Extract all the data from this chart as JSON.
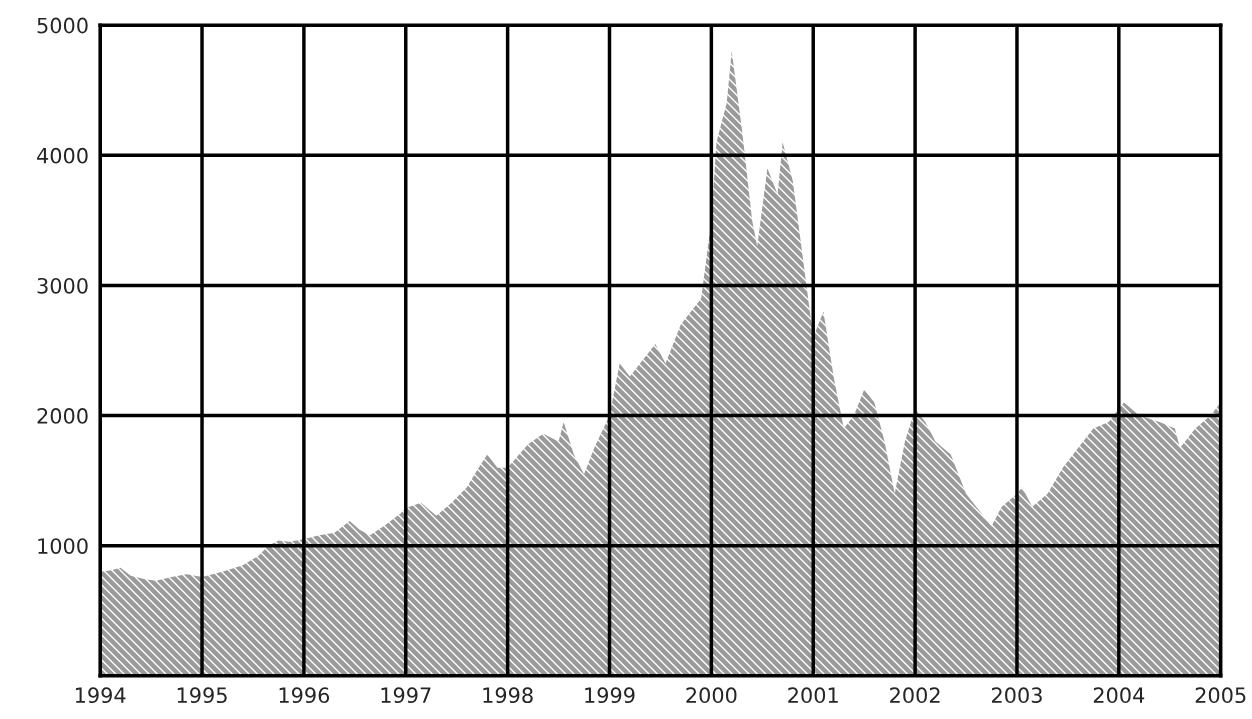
{
  "chart_data": {
    "type": "area",
    "xlim": [
      1994,
      2005
    ],
    "xticks": [
      1994,
      1995,
      1996,
      1997,
      1998,
      1999,
      2000,
      2001,
      2002,
      2003,
      2004,
      2005
    ],
    "ylim": [
      0,
      5000
    ],
    "yticks": [
      1000,
      2000,
      3000,
      4000,
      5000
    ],
    "grid": true,
    "series": [
      {
        "color": "#9a9a9a",
        "x": [
          1994.0,
          1994.1,
          1994.2,
          1994.3,
          1994.45,
          1994.55,
          1994.7,
          1994.85,
          1995.0,
          1995.2,
          1995.4,
          1995.55,
          1995.65,
          1995.75,
          1995.85,
          1996.0,
          1996.15,
          1996.3,
          1996.45,
          1996.55,
          1996.65,
          1996.8,
          1996.95,
          1997.0,
          1997.15,
          1997.3,
          1997.45,
          1997.6,
          1997.7,
          1997.8,
          1997.9,
          1998.0,
          1998.2,
          1998.35,
          1998.5,
          1998.55,
          1998.65,
          1998.75,
          1998.85,
          1999.0,
          1999.1,
          1999.2,
          1999.35,
          1999.45,
          1999.55,
          1999.7,
          1999.8,
          1999.9,
          2000.0,
          2000.05,
          2000.15,
          2000.2,
          2000.3,
          2000.4,
          2000.45,
          2000.55,
          2000.65,
          2000.7,
          2000.8,
          2000.9,
          2001.0,
          2001.1,
          2001.2,
          2001.3,
          2001.4,
          2001.5,
          2001.6,
          2001.7,
          2001.8,
          2001.9,
          2002.0,
          2002.1,
          2002.2,
          2002.35,
          2002.5,
          2002.6,
          2002.75,
          2002.85,
          2003.0,
          2003.05,
          2003.15,
          2003.3,
          2003.45,
          2003.6,
          2003.75,
          2003.9,
          2004.05,
          2004.2,
          2004.4,
          2004.55,
          2004.6,
          2004.75,
          2004.9,
          2005.0
        ],
        "values": [
          800,
          810,
          830,
          770,
          740,
          730,
          760,
          780,
          760,
          800,
          850,
          920,
          1000,
          1040,
          1030,
          1050,
          1080,
          1100,
          1190,
          1120,
          1080,
          1160,
          1250,
          1290,
          1330,
          1230,
          1330,
          1450,
          1580,
          1700,
          1600,
          1600,
          1780,
          1860,
          1800,
          1950,
          1700,
          1550,
          1750,
          2000,
          2400,
          2300,
          2450,
          2550,
          2400,
          2700,
          2800,
          2900,
          3500,
          4100,
          4400,
          4800,
          4200,
          3500,
          3300,
          3900,
          3700,
          4100,
          3800,
          3200,
          2600,
          2800,
          2300,
          1900,
          2000,
          2200,
          2100,
          1800,
          1400,
          1800,
          2050,
          1950,
          1800,
          1700,
          1400,
          1300,
          1150,
          1300,
          1400,
          1450,
          1300,
          1400,
          1600,
          1750,
          1900,
          1950,
          2100,
          2000,
          1950,
          1900,
          1750,
          1900,
          2000,
          2100
        ]
      }
    ]
  }
}
